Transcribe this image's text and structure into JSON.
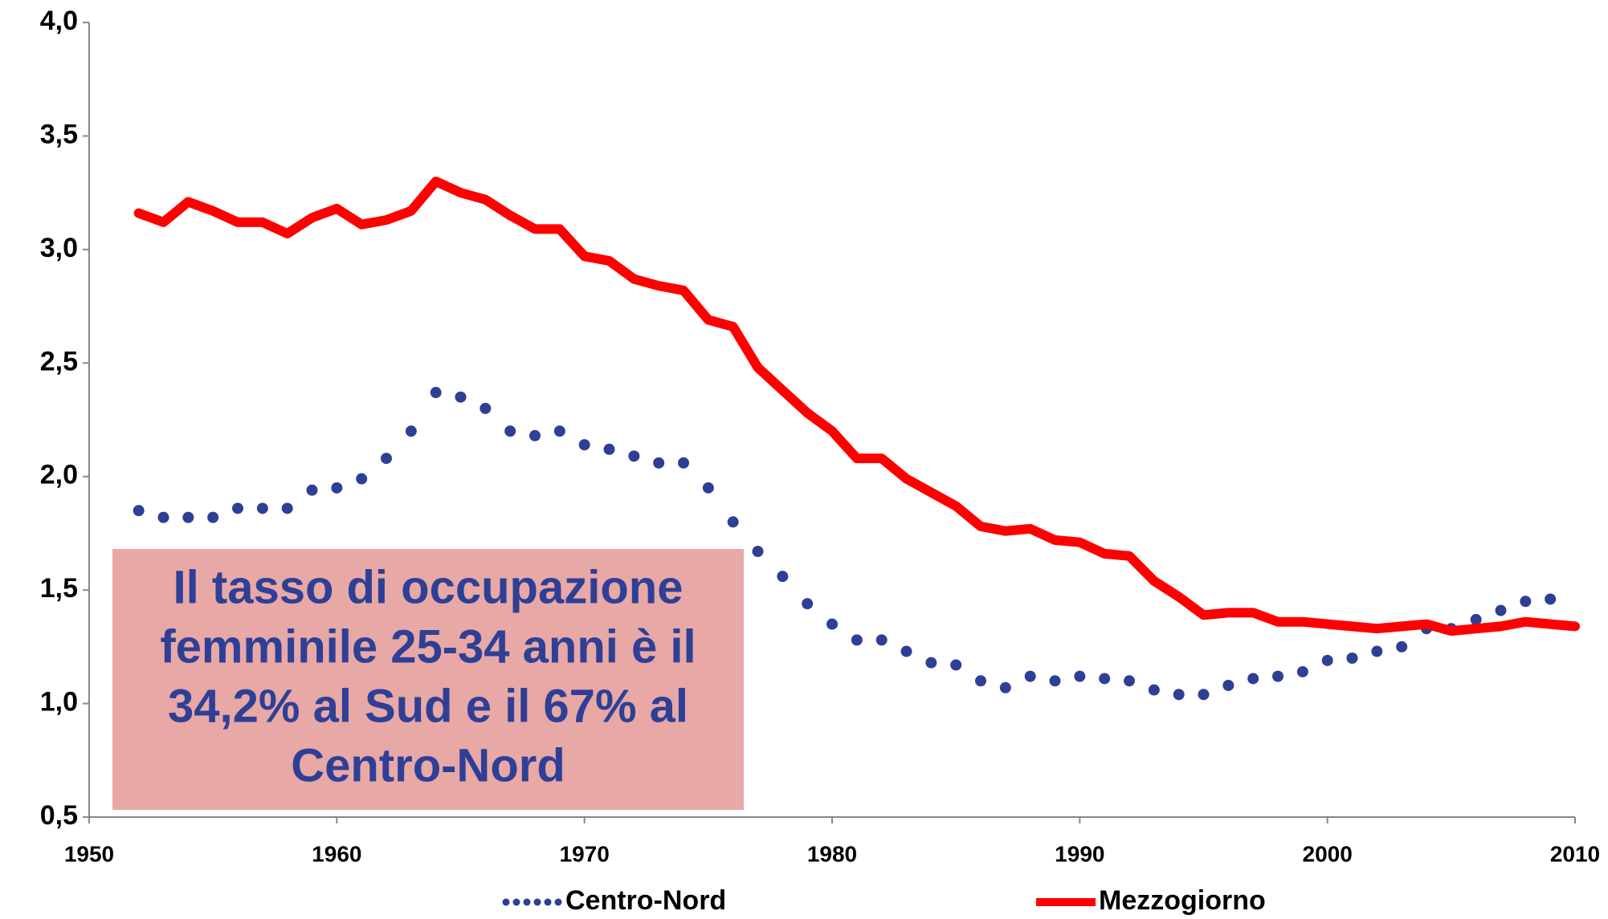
{
  "chart_data": {
    "type": "line",
    "x": [
      1952,
      1953,
      1954,
      1955,
      1956,
      1957,
      1958,
      1959,
      1960,
      1961,
      1962,
      1963,
      1964,
      1965,
      1966,
      1967,
      1968,
      1969,
      1970,
      1971,
      1972,
      1973,
      1974,
      1975,
      1976,
      1977,
      1978,
      1979,
      1980,
      1981,
      1982,
      1983,
      1984,
      1985,
      1986,
      1987,
      1988,
      1989,
      1990,
      1991,
      1992,
      1993,
      1994,
      1995,
      1996,
      1997,
      1998,
      1999,
      2000,
      2001,
      2002,
      2003,
      2004,
      2005,
      2006,
      2007,
      2008,
      2009,
      2010
    ],
    "series": [
      {
        "name": "Centro-Nord",
        "color": "#2e3f96",
        "style": "dotted",
        "values": [
          1.85,
          1.82,
          1.82,
          1.82,
          1.86,
          1.86,
          1.86,
          1.94,
          1.95,
          1.99,
          2.08,
          2.2,
          2.37,
          2.35,
          2.3,
          2.2,
          2.18,
          2.2,
          2.14,
          2.12,
          2.09,
          2.06,
          2.06,
          1.95,
          1.8,
          1.67,
          1.56,
          1.44,
          1.35,
          1.28,
          1.28,
          1.23,
          1.18,
          1.17,
          1.1,
          1.07,
          1.12,
          1.1,
          1.12,
          1.11,
          1.1,
          1.06,
          1.04,
          1.04,
          1.08,
          1.11,
          1.12,
          1.14,
          1.19,
          1.2,
          1.23,
          1.25,
          1.33,
          1.33,
          1.37,
          1.41,
          1.45,
          1.46,
          null
        ]
      },
      {
        "name": "Mezzogiorno",
        "color": "#ff0000",
        "style": "solid",
        "values": [
          3.16,
          3.12,
          3.21,
          3.17,
          3.12,
          3.12,
          3.07,
          3.14,
          3.18,
          3.11,
          3.13,
          3.17,
          3.3,
          3.25,
          3.22,
          3.15,
          3.09,
          3.09,
          2.97,
          2.95,
          2.87,
          2.84,
          2.82,
          2.69,
          2.66,
          2.48,
          2.38,
          2.28,
          2.2,
          2.08,
          2.08,
          1.99,
          1.93,
          1.87,
          1.78,
          1.76,
          1.77,
          1.72,
          1.71,
          1.66,
          1.65,
          1.54,
          1.47,
          1.39,
          1.4,
          1.4,
          1.36,
          1.36,
          1.35,
          1.34,
          1.33,
          1.34,
          1.35,
          1.32,
          1.33,
          1.34,
          1.36,
          1.35,
          1.34
        ]
      }
    ],
    "xlim": [
      1950,
      2010
    ],
    "xticks": [
      1950,
      1960,
      1970,
      1980,
      1990,
      2000,
      2010
    ],
    "ylim": [
      0.5,
      4.0
    ],
    "yticks": [
      {
        "value": 0.5,
        "label": "0,5"
      },
      {
        "value": 1.0,
        "label": "1,0"
      },
      {
        "value": 1.5,
        "label": "1,5"
      },
      {
        "value": 2.0,
        "label": "2,0"
      },
      {
        "value": 2.5,
        "label": "2,5"
      },
      {
        "value": 3.0,
        "label": "3,0"
      },
      {
        "value": 3.5,
        "label": "3,5"
      },
      {
        "value": 4.0,
        "label": "4,0"
      }
    ],
    "annotation": [
      "Il tasso di occupazione",
      "femminile 25-34 anni è il",
      "34,2% al Sud e il 67% al",
      "Centro-Nord"
    ],
    "legend": "bottom"
  }
}
